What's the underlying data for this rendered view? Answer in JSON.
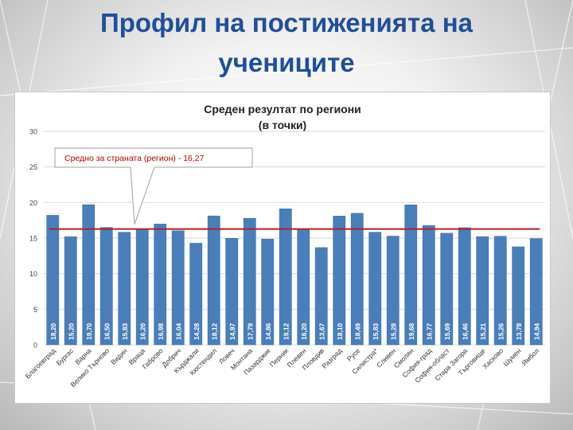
{
  "slide": {
    "title_line1": "Профил на постиженията на",
    "title_line2": "учениците"
  },
  "colors": {
    "bar": "#4a7ebb",
    "bar_edge": "#3a6aa6",
    "average_line": "#b22222",
    "title": "#1f4e9c",
    "callout_text": "#c00000"
  },
  "chart_data": {
    "type": "bar",
    "title_line1": "Среден резултат по региони",
    "title_line2": "(в точки)",
    "annotation": "Средно за страната (регион) - 16,27",
    "reference_line": 16.27,
    "ylim": [
      0,
      30
    ],
    "yticks": [
      0,
      5,
      10,
      15,
      20,
      25,
      30
    ],
    "grid": true,
    "categories": [
      "Благоевград",
      "Бургас",
      "Варна",
      "Велико Търново",
      "Видин",
      "Враца",
      "Габрово",
      "Добрич",
      "Кърджали",
      "Кюстендил",
      "Ловеч",
      "Монтана",
      "Пазарджик",
      "Перник",
      "Плевен",
      "Пловдив",
      "Разград",
      "Русе",
      "Силистра*",
      "Сливен",
      "Смолян",
      "София-град",
      "София-област",
      "Стара Загора",
      "Търговище",
      "Хасково",
      "Шумен",
      "Ямбол"
    ],
    "values": [
      18.2,
      15.2,
      19.7,
      16.5,
      15.83,
      16.2,
      16.98,
      16.04,
      14.28,
      18.12,
      14.97,
      17.79,
      14.86,
      19.12,
      16.2,
      13.67,
      18.1,
      18.49,
      15.83,
      15.28,
      19.68,
      16.77,
      15.69,
      16.46,
      15.21,
      15.26,
      13.78,
      14.94
    ],
    "value_labels": [
      "18,20",
      "15,20",
      "19,70",
      "16,50",
      "15,83",
      "16,20",
      "16,98",
      "16,04",
      "14,28",
      "18,12",
      "14,97",
      "17,79",
      "14,86",
      "19,12",
      "16,20",
      "13,67",
      "18,10",
      "18,49",
      "15,83",
      "15,28",
      "19,68",
      "16,77",
      "15,69",
      "16,46",
      "15,21",
      "15,26",
      "13,78",
      "14,94"
    ]
  }
}
